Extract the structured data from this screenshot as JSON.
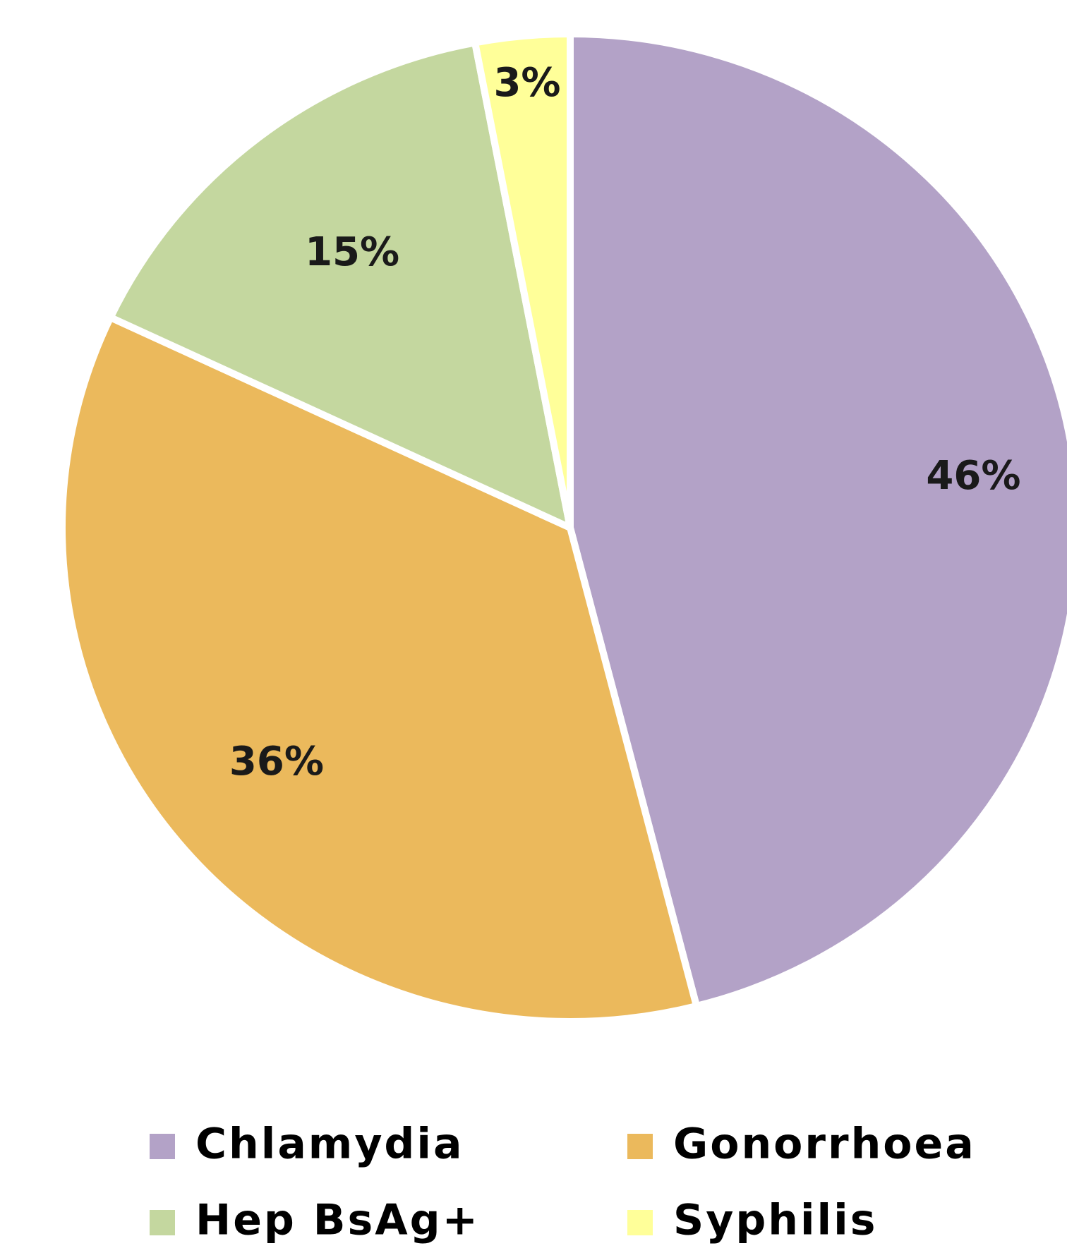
{
  "chart_data": {
    "type": "pie",
    "categories": [
      "Chlamydia",
      "Gonorrhoea",
      "Hep BsAg+",
      "Syphilis"
    ],
    "values": [
      46,
      36,
      15,
      3
    ],
    "value_labels": [
      "46%",
      "36%",
      "15%",
      "3%"
    ],
    "colors": [
      "#b3a2c7",
      "#ebb95c",
      "#c4d79f",
      "#ffff99"
    ],
    "legend": "bottom"
  }
}
